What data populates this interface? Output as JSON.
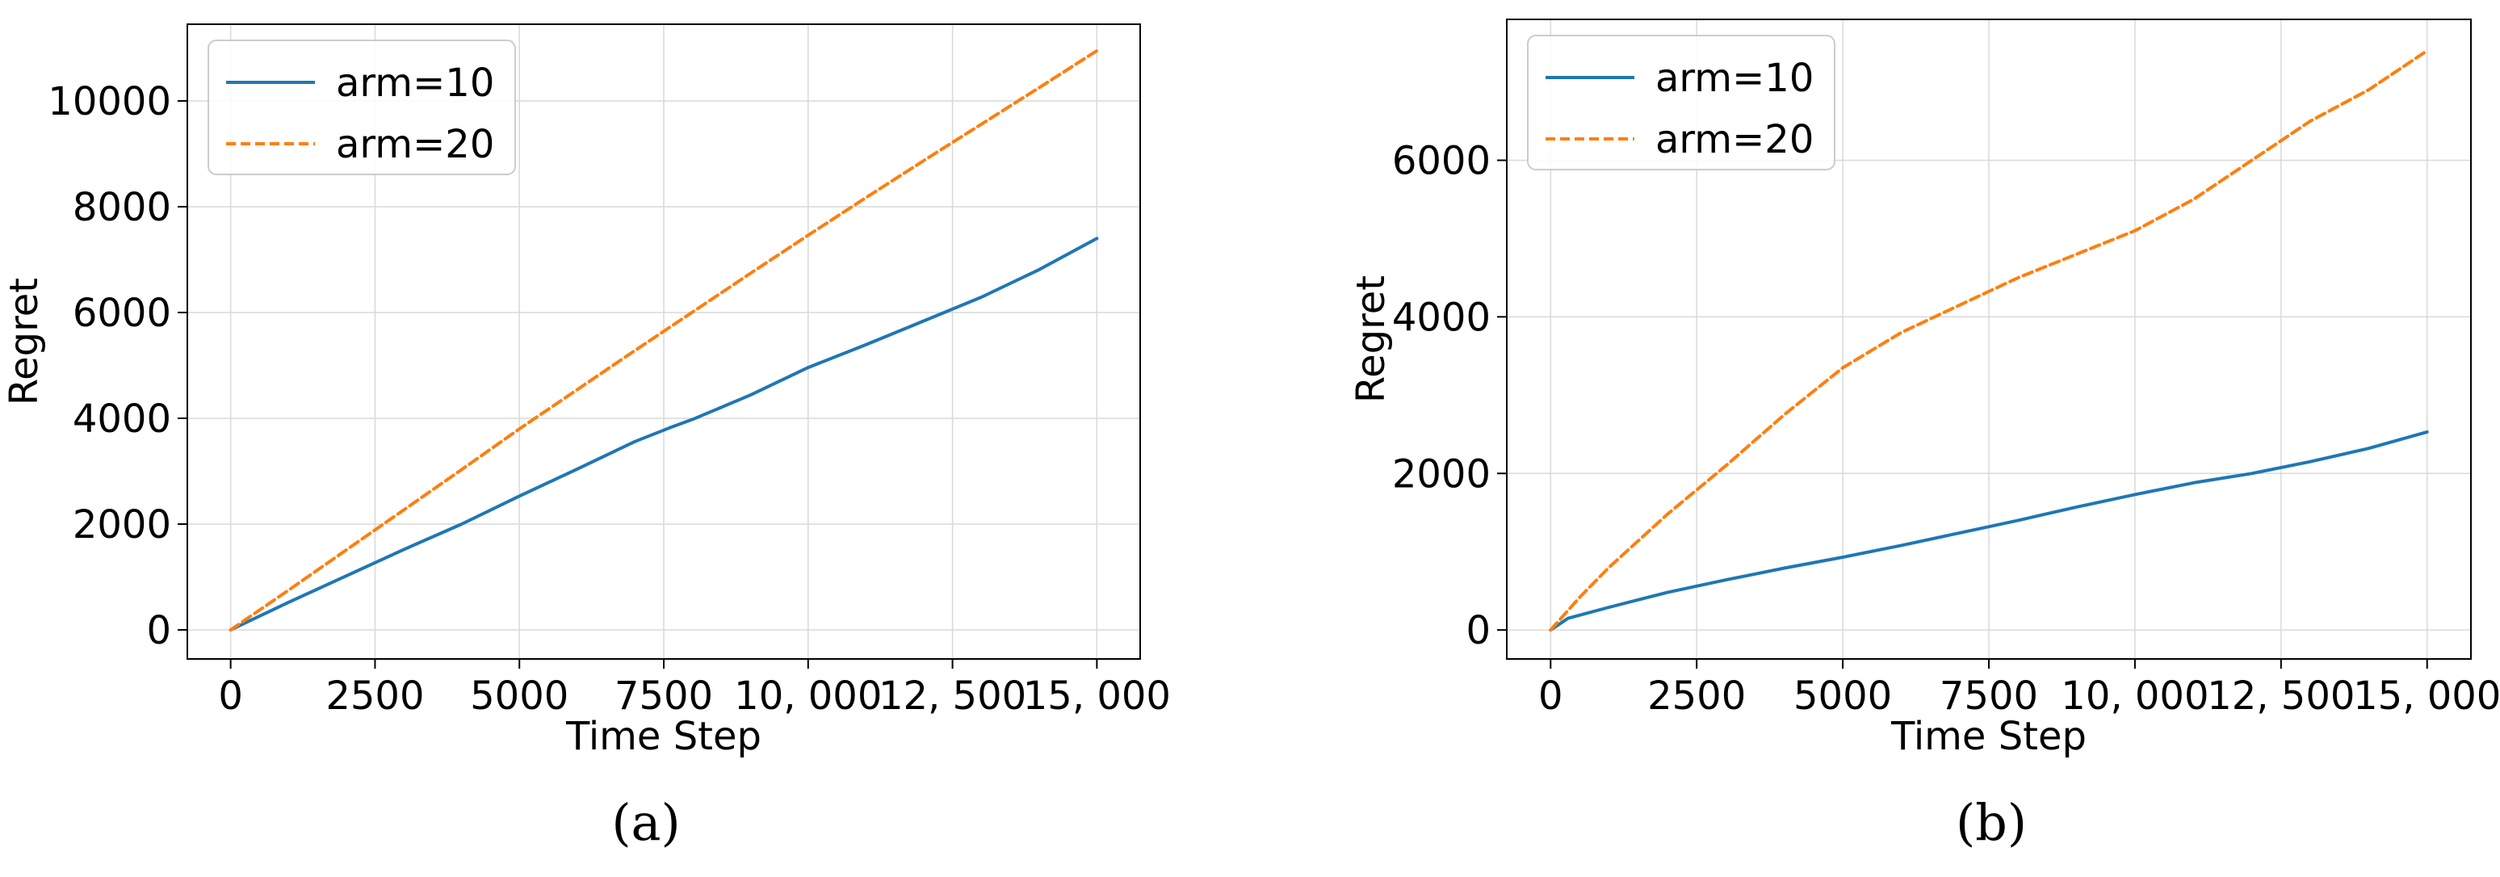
{
  "chart_data": [
    {
      "type": "line",
      "caption": "(a)",
      "xlabel": "Time Step",
      "ylabel": "Regret",
      "xlim": [
        -750,
        15750
      ],
      "ylim": [
        -550,
        11450
      ],
      "xticks": [
        0,
        2500,
        5000,
        7500,
        10000,
        12500,
        15000
      ],
      "xtick_labels": [
        "0",
        "2500",
        "5000",
        "7500",
        "10, 000",
        "12, 500",
        "15, 000"
      ],
      "yticks": [
        0,
        2000,
        4000,
        6000,
        8000,
        10000
      ],
      "ytick_labels": [
        "0",
        "2000",
        "4000",
        "6000",
        "8000",
        "10000"
      ],
      "grid": true,
      "legend_position": "top-left",
      "series": [
        {
          "name": "arm=10",
          "color": "#1f77b4",
          "style": "solid",
          "x": [
            0,
            1000,
            2000,
            3000,
            4000,
            5000,
            6000,
            7000,
            7600,
            8000,
            9000,
            10000,
            11000,
            12000,
            13000,
            14000,
            15000
          ],
          "values": [
            0,
            520,
            1020,
            1520,
            2000,
            2530,
            3040,
            3560,
            3820,
            3980,
            4440,
            4960,
            5390,
            5840,
            6290,
            6810,
            7400
          ]
        },
        {
          "name": "arm=20",
          "color": "#ff7f0e",
          "style": "dashed",
          "x": [
            0,
            1000,
            2000,
            3000,
            4000,
            5000,
            6000,
            7000,
            8000,
            9000,
            10000,
            11000,
            12000,
            13000,
            14000,
            15000
          ],
          "values": [
            0,
            750,
            1510,
            2270,
            3030,
            3800,
            4540,
            5280,
            6010,
            6740,
            7460,
            8170,
            8870,
            9560,
            10250,
            10950
          ]
        }
      ]
    },
    {
      "type": "line",
      "caption": "(b)",
      "xlabel": "Time Step",
      "ylabel": "Regret",
      "xlim": [
        -750,
        15750
      ],
      "ylim": [
        -370,
        7800
      ],
      "xticks": [
        0,
        2500,
        5000,
        7500,
        10000,
        12500,
        15000
      ],
      "xtick_labels": [
        "0",
        "2500",
        "5000",
        "7500",
        "10, 000",
        "12, 500",
        "15, 000"
      ],
      "yticks": [
        0,
        2000,
        4000,
        6000
      ],
      "ytick_labels": [
        "0",
        "2000",
        "4000",
        "6000"
      ],
      "grid": true,
      "legend_position": "top-left",
      "series": [
        {
          "name": "arm=10",
          "color": "#1f77b4",
          "style": "solid",
          "x": [
            0,
            300,
            1000,
            2000,
            3000,
            4000,
            5000,
            6000,
            7000,
            8000,
            9000,
            10000,
            11000,
            12000,
            13000,
            14000,
            15000
          ],
          "values": [
            0,
            150,
            290,
            480,
            640,
            790,
            930,
            1080,
            1240,
            1400,
            1570,
            1730,
            1880,
            2000,
            2150,
            2320,
            2530
          ]
        },
        {
          "name": "arm=20",
          "color": "#ff7f0e",
          "style": "dashed",
          "x": [
            0,
            500,
            1000,
            2000,
            3000,
            4000,
            5000,
            6000,
            7000,
            8000,
            9000,
            10000,
            11000,
            12000,
            13000,
            14000,
            15000
          ],
          "values": [
            0,
            420,
            800,
            1480,
            2100,
            2750,
            3350,
            3800,
            4150,
            4500,
            4800,
            5100,
            5500,
            6000,
            6500,
            6900,
            7400
          ]
        }
      ]
    }
  ]
}
